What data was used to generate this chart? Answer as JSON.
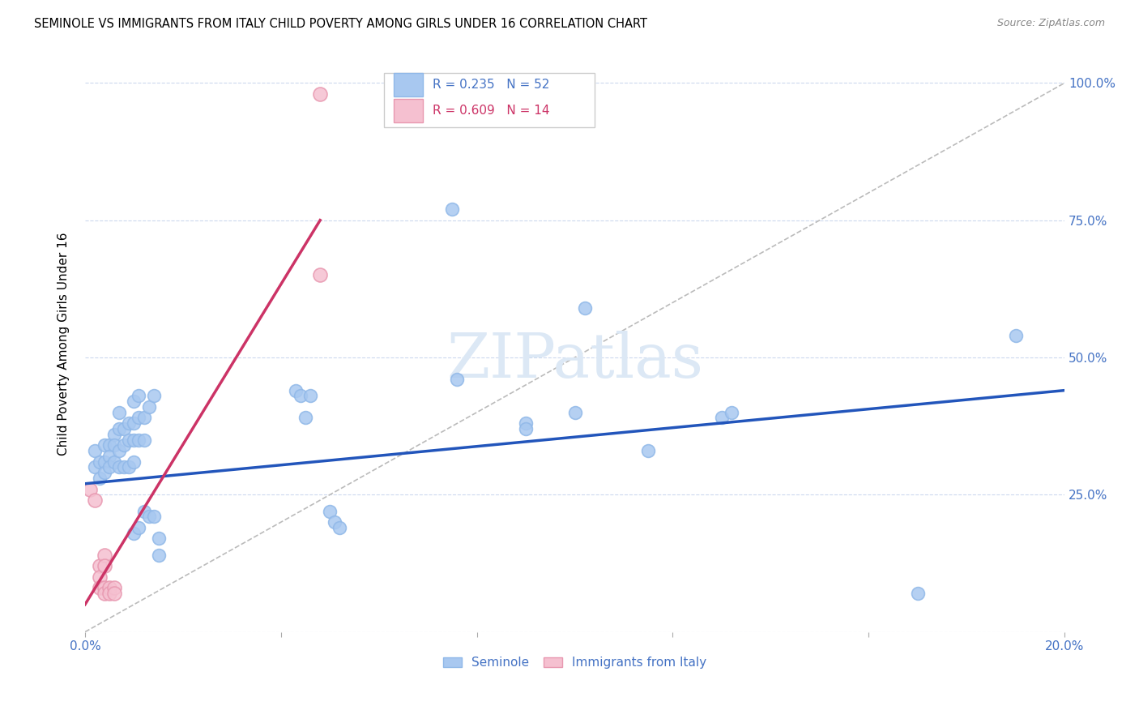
{
  "title": "SEMINOLE VS IMMIGRANTS FROM ITALY CHILD POVERTY AMONG GIRLS UNDER 16 CORRELATION CHART",
  "source": "Source: ZipAtlas.com",
  "ylabel": "Child Poverty Among Girls Under 16",
  "xlim": [
    0.0,
    0.2
  ],
  "ylim": [
    0.0,
    1.05
  ],
  "xticks": [
    0.0,
    0.04,
    0.08,
    0.12,
    0.16,
    0.2
  ],
  "xticklabels": [
    "0.0%",
    "",
    "",
    "",
    "",
    "20.0%"
  ],
  "yticks": [
    0.0,
    0.25,
    0.5,
    0.75,
    1.0
  ],
  "yticklabels": [
    "",
    "25.0%",
    "50.0%",
    "75.0%",
    "100.0%"
  ],
  "seminole_color": "#a8c8f0",
  "seminole_edge_color": "#90b8e8",
  "immigrants_color": "#f5c0d0",
  "immigrants_edge_color": "#e898b0",
  "seminole_line_color": "#2255bb",
  "immigrants_line_color": "#cc3366",
  "diagonal_color": "#bbbbbb",
  "watermark_color": "#dce8f5",
  "legend_R_color_seminole": "#4472c4",
  "legend_R_color_immigrants": "#cc3366",
  "legend_N_color": "#4472c4",
  "seminole_points": [
    [
      0.002,
      0.33
    ],
    [
      0.002,
      0.3
    ],
    [
      0.003,
      0.31
    ],
    [
      0.003,
      0.28
    ],
    [
      0.004,
      0.34
    ],
    [
      0.004,
      0.31
    ],
    [
      0.004,
      0.29
    ],
    [
      0.005,
      0.34
    ],
    [
      0.005,
      0.32
    ],
    [
      0.005,
      0.3
    ],
    [
      0.006,
      0.36
    ],
    [
      0.006,
      0.34
    ],
    [
      0.006,
      0.31
    ],
    [
      0.007,
      0.4
    ],
    [
      0.007,
      0.37
    ],
    [
      0.007,
      0.33
    ],
    [
      0.007,
      0.3
    ],
    [
      0.008,
      0.37
    ],
    [
      0.008,
      0.34
    ],
    [
      0.008,
      0.3
    ],
    [
      0.009,
      0.38
    ],
    [
      0.009,
      0.35
    ],
    [
      0.009,
      0.3
    ],
    [
      0.01,
      0.42
    ],
    [
      0.01,
      0.38
    ],
    [
      0.01,
      0.35
    ],
    [
      0.01,
      0.31
    ],
    [
      0.01,
      0.18
    ],
    [
      0.011,
      0.43
    ],
    [
      0.011,
      0.39
    ],
    [
      0.011,
      0.35
    ],
    [
      0.011,
      0.19
    ],
    [
      0.012,
      0.39
    ],
    [
      0.012,
      0.35
    ],
    [
      0.012,
      0.22
    ],
    [
      0.013,
      0.41
    ],
    [
      0.013,
      0.21
    ],
    [
      0.014,
      0.43
    ],
    [
      0.014,
      0.21
    ],
    [
      0.015,
      0.17
    ],
    [
      0.015,
      0.14
    ],
    [
      0.043,
      0.44
    ],
    [
      0.044,
      0.43
    ],
    [
      0.045,
      0.39
    ],
    [
      0.046,
      0.43
    ],
    [
      0.05,
      0.22
    ],
    [
      0.051,
      0.2
    ],
    [
      0.052,
      0.19
    ],
    [
      0.075,
      0.77
    ],
    [
      0.076,
      0.46
    ],
    [
      0.09,
      0.38
    ],
    [
      0.09,
      0.37
    ],
    [
      0.1,
      0.4
    ],
    [
      0.102,
      0.59
    ],
    [
      0.115,
      0.33
    ],
    [
      0.13,
      0.39
    ],
    [
      0.132,
      0.4
    ],
    [
      0.17,
      0.07
    ],
    [
      0.19,
      0.54
    ]
  ],
  "immigrants_points": [
    [
      0.001,
      0.26
    ],
    [
      0.002,
      0.24
    ],
    [
      0.003,
      0.12
    ],
    [
      0.003,
      0.1
    ],
    [
      0.003,
      0.08
    ],
    [
      0.004,
      0.14
    ],
    [
      0.004,
      0.12
    ],
    [
      0.004,
      0.08
    ],
    [
      0.004,
      0.07
    ],
    [
      0.005,
      0.08
    ],
    [
      0.005,
      0.07
    ],
    [
      0.006,
      0.08
    ],
    [
      0.006,
      0.07
    ],
    [
      0.048,
      0.98
    ],
    [
      0.048,
      0.65
    ]
  ],
  "seminole_trendline_x": [
    0.0,
    0.2
  ],
  "seminole_trendline_y": [
    0.27,
    0.44
  ],
  "immigrants_trendline_x": [
    0.0,
    0.048
  ],
  "immigrants_trendline_y": [
    0.05,
    0.75
  ],
  "diagonal_line": [
    0.0,
    0.2,
    0.0,
    1.0
  ]
}
